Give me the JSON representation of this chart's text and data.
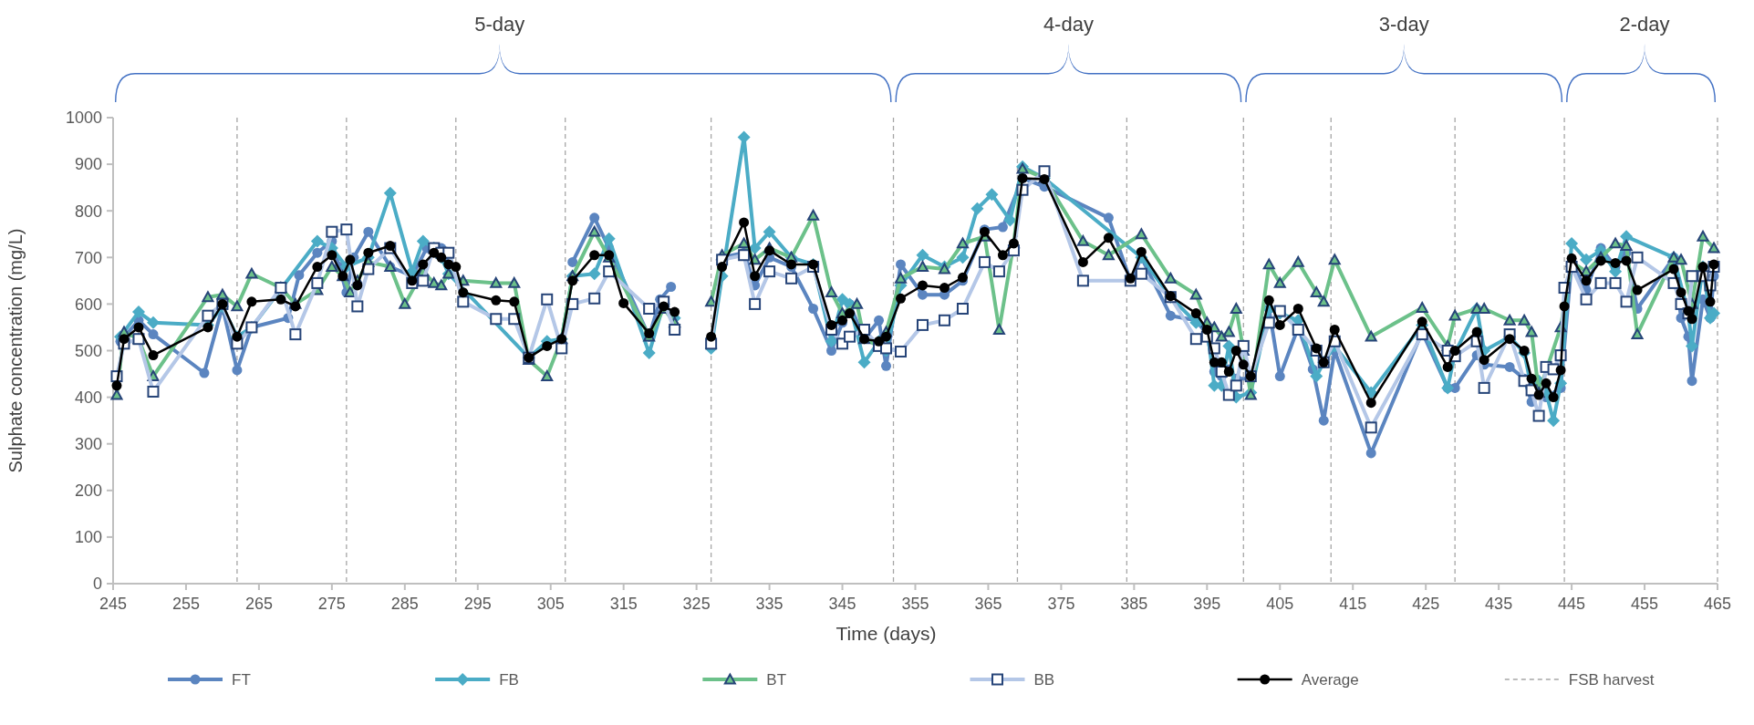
{
  "chart_data": {
    "type": "line",
    "xlabel": "Time (days)",
    "ylabel": "Sulphate concentration  (mg/L)",
    "xlim": [
      245,
      465
    ],
    "xticks": [
      245,
      255,
      265,
      275,
      285,
      295,
      305,
      315,
      325,
      335,
      345,
      355,
      365,
      375,
      385,
      395,
      405,
      415,
      425,
      435,
      445,
      455,
      465
    ],
    "ylim": [
      0,
      1000
    ],
    "yticks": [
      0,
      100,
      200,
      300,
      400,
      500,
      600,
      700,
      800,
      900,
      1000
    ],
    "legend": "bottom",
    "line_style": "solid",
    "annotations": [
      "5-day",
      "4-day",
      "3-day",
      "2-day"
    ],
    "ref_lines": [
      {
        "axis": "x",
        "value": 262,
        "label": "FSB harvest",
        "color": "#a6a6a6",
        "line_style": "dashed"
      },
      {
        "axis": "x",
        "value": 277,
        "color": "#a6a6a6",
        "line_style": "dashed"
      },
      {
        "axis": "x",
        "value": 292,
        "color": "#a6a6a6",
        "line_style": "dashed"
      },
      {
        "axis": "x",
        "value": 307,
        "color": "#a6a6a6",
        "line_style": "dashed"
      },
      {
        "axis": "x",
        "value": 327,
        "color": "#a6a6a6",
        "line_style": "dashed"
      },
      {
        "axis": "x",
        "value": 352,
        "color": "#a6a6a6",
        "line_style": "dashed"
      },
      {
        "axis": "x",
        "value": 369,
        "color": "#a6a6a6",
        "line_style": "dashed"
      },
      {
        "axis": "x",
        "value": 384,
        "color": "#a6a6a6",
        "line_style": "dashed"
      },
      {
        "axis": "x",
        "value": 400,
        "color": "#a6a6a6",
        "line_style": "dashed"
      },
      {
        "axis": "x",
        "value": 412,
        "color": "#a6a6a6",
        "line_style": "dashed"
      },
      {
        "axis": "x",
        "value": 429,
        "color": "#a6a6a6",
        "line_style": "dashed"
      },
      {
        "axis": "x",
        "value": 444,
        "color": "#a6a6a6",
        "line_style": "dashed"
      },
      {
        "axis": "x",
        "value": 465,
        "color": "#a6a6a6",
        "line_style": "dashed"
      }
    ],
    "series": [
      {
        "name": "FT",
        "color": "#5b85c0",
        "marker": "circle",
        "x": [
          246,
          248.5,
          250.5,
          257.5,
          260,
          262,
          264,
          269,
          270.5,
          273,
          275,
          276,
          277,
          278,
          280,
          283,
          286,
          288,
          290,
          291,
          299,
          308,
          311,
          313,
          318.5,
          320,
          321.5,
          324.5,
          328.5,
          331.5,
          333,
          335,
          338,
          341,
          343.5,
          345,
          346,
          348,
          350,
          351,
          353,
          356,
          359,
          361.5,
          364.5,
          367,
          369.7,
          372.7,
          381.5,
          384.5,
          386,
          390,
          393.5,
          395,
          396,
          397,
          398,
          399,
          401,
          403.5,
          405,
          407.5,
          409.5,
          411,
          412.5,
          417.5,
          424.5,
          428,
          429,
          432,
          433,
          436.5,
          438.5,
          439.5,
          440.5,
          441.5,
          443.5,
          445,
          447,
          449,
          451,
          452.5,
          454,
          459,
          460,
          461,
          461.5,
          463,
          464,
          464.5
        ],
        "values": [
          520,
          565,
          535,
          452,
          595,
          458,
          550,
          570,
          662,
          710,
          735,
          680,
          625,
          700,
          755,
          680,
          660,
          720,
          720,
          690,
          null,
          690,
          785,
          720,
          530,
          610,
          637,
          null,
          700,
          710,
          640,
          700,
          680,
          590,
          500,
          560,
          600,
          525,
          565,
          467,
          685,
          620,
          620,
          650,
          760,
          765,
          870,
          852,
          785,
          650,
          700,
          575,
          565,
          535,
          455,
          445,
          460,
          440,
          440,
          590,
          445,
          550,
          460,
          350,
          500,
          280,
          540,
          420,
          420,
          490,
          470,
          465,
          440,
          390,
          410,
          400,
          420,
          690,
          630,
          720,
          680,
          710,
          590,
          700,
          570,
          530,
          435,
          610,
          570,
          660
        ]
      },
      {
        "name": "FB",
        "color": "#4bacc6",
        "marker": "diamond",
        "x": [
          246,
          248.5,
          250.5,
          258,
          260,
          262,
          264,
          273,
          275,
          277,
          280,
          283,
          286,
          287.5,
          289,
          290,
          291,
          302,
          304.5,
          306.5,
          308,
          311,
          313,
          318.5,
          320.5,
          322,
          324.5,
          327,
          328.5,
          331.5,
          333,
          335,
          338,
          341,
          343.5,
          345,
          346,
          348,
          350,
          351,
          353,
          356,
          359,
          361.5,
          363.5,
          365.5,
          368,
          369.7,
          372.7,
          386,
          390,
          393.5,
          395,
          396,
          397,
          398,
          399,
          401,
          403.5,
          405,
          407.5,
          410,
          411,
          412.5,
          417.5,
          424.5,
          428,
          429,
          432,
          433,
          436.5,
          438.5,
          439.5,
          440.5,
          441.5,
          442.5,
          443.5,
          445,
          447,
          449,
          451,
          452.5,
          459,
          461,
          461.5,
          463,
          464,
          464.5
        ],
        "values": [
          530,
          583,
          560,
          555,
          595,
          530,
          550,
          735,
          720,
          680,
          700,
          838,
          670,
          735,
          720,
          700,
          665,
          485,
          520,
          525,
          660,
          665,
          740,
          495,
          600,
          570,
          null,
          505,
          660,
          958,
          720,
          755,
          700,
          685,
          520,
          610,
          600,
          475,
          520,
          500,
          640,
          705,
          680,
          700,
          805,
          835,
          780,
          895,
          870,
          700,
          615,
          560,
          550,
          425,
          425,
          510,
          400,
          410,
          590,
          580,
          565,
          445,
          475,
          510,
          410,
          555,
          420,
          495,
          590,
          500,
          530,
          495,
          420,
          435,
          410,
          350,
          430,
          730,
          695,
          715,
          670,
          745,
          700,
          580,
          510,
          680,
          570,
          580
        ]
      },
      {
        "name": "BT",
        "color": "#6cc18a",
        "marker": "triangle",
        "x": [
          245.5,
          246.5,
          248.5,
          250.5,
          258,
          260,
          262,
          264,
          268,
          270,
          273,
          275,
          276.5,
          277.5,
          278.5,
          280,
          283,
          285,
          287.5,
          289,
          290,
          291,
          293,
          297.5,
          300,
          302,
          304.5,
          306.5,
          308,
          311,
          313,
          318.5,
          320.5,
          322,
          324.5,
          327,
          328.5,
          331.5,
          333,
          335,
          338,
          341,
          343.5,
          345,
          347,
          348,
          350,
          351,
          353,
          356,
          359,
          361.5,
          364.5,
          366.5,
          368.5,
          369.7,
          372.7,
          378,
          381.5,
          386,
          390,
          393.5,
          395,
          396,
          397,
          398,
          399,
          400,
          401,
          403.5,
          405,
          407.5,
          410,
          411,
          412.5,
          417.5,
          424.5,
          428,
          429,
          432,
          433,
          436.5,
          438.5,
          439.5,
          440.5,
          443.5,
          445,
          447,
          449,
          451,
          452.5,
          454,
          459,
          460,
          461.5,
          463,
          464.5
        ],
        "values": [
          405,
          540,
          525,
          445,
          615,
          620,
          595,
          665,
          635,
          600,
          630,
          680,
          660,
          625,
          650,
          690,
          680,
          600,
          670,
          645,
          640,
          665,
          650,
          645,
          645,
          480,
          445,
          525,
          660,
          755,
          700,
          530,
          590,
          560,
          null,
          605,
          705,
          730,
          695,
          720,
          700,
          790,
          625,
          580,
          600,
          525,
          510,
          540,
          655,
          680,
          675,
          730,
          745,
          545,
          730,
          890,
          870,
          735,
          705,
          750,
          655,
          620,
          560,
          550,
          530,
          540,
          590,
          500,
          405,
          685,
          645,
          690,
          625,
          605,
          695,
          530,
          592,
          510,
          575,
          590,
          590,
          565,
          565,
          540,
          410,
          550,
          690,
          670,
          700,
          730,
          725,
          535,
          700,
          695,
          600,
          745,
          720
        ]
      },
      {
        "name": "BB",
        "color": "#b4c7e7",
        "marker": "square",
        "x": [
          245.5,
          246.5,
          248.5,
          250.5,
          258,
          260,
          262,
          264,
          268,
          270,
          273,
          275,
          277,
          278.5,
          280,
          283,
          286,
          287.5,
          289,
          290,
          291,
          293,
          297.5,
          300,
          302,
          304.5,
          306.5,
          308,
          311,
          313,
          318.5,
          320.5,
          322,
          324.5,
          327,
          328.5,
          331.5,
          333,
          335,
          338,
          341,
          343.5,
          345,
          346,
          348,
          350,
          351,
          353,
          356,
          359,
          361.5,
          364.5,
          366.5,
          368.5,
          369.7,
          372.7,
          378,
          384.5,
          386,
          390,
          393.5,
          395,
          396,
          397,
          398,
          399,
          400,
          401,
          403.5,
          405,
          407.5,
          410,
          411,
          412.5,
          417.5,
          424.5,
          428,
          429,
          432,
          433,
          436.5,
          438.5,
          439.5,
          440.5,
          441.5,
          442.5,
          443.5,
          444,
          445,
          447,
          449,
          451,
          452.5,
          454,
          459,
          460,
          461,
          461.5,
          463,
          464,
          464.5
        ],
        "values": [
          445,
          515,
          525,
          412,
          575,
          600,
          515,
          550,
          635,
          535,
          645,
          755,
          760,
          595,
          675,
          720,
          645,
          650,
          720,
          710,
          710,
          605,
          568,
          568,
          485,
          610,
          505,
          600,
          612,
          670,
          590,
          605,
          545,
          null,
          515,
          695,
          705,
          600,
          670,
          655,
          680,
          545,
          515,
          530,
          545,
          510,
          505,
          498,
          555,
          565,
          590,
          690,
          670,
          715,
          845,
          885,
          650,
          650,
          665,
          615,
          525,
          530,
          505,
          455,
          405,
          425,
          510,
          445,
          560,
          585,
          545,
          500,
          475,
          520,
          335,
          535,
          500,
          488,
          520,
          420,
          535,
          435,
          415,
          360,
          465,
          460,
          490,
          635,
          680,
          610,
          645,
          645,
          605,
          700,
          645,
          600,
          580,
          660,
          660,
          640,
          680
        ]
      },
      {
        "name": "Average",
        "color": "#000000",
        "marker": "circle",
        "x": [
          245.5,
          246.5,
          248.5,
          250.5,
          258,
          260,
          262,
          264,
          268,
          270,
          273,
          275,
          276.5,
          277.5,
          278.5,
          280,
          283,
          286,
          287.5,
          289,
          290,
          291,
          292,
          293,
          297.5,
          300,
          302,
          304.5,
          306.5,
          308,
          311,
          313,
          315,
          318.5,
          320.5,
          322,
          324.5,
          327,
          328.5,
          331.5,
          333,
          335,
          338,
          341,
          343.5,
          345,
          346,
          348,
          350,
          351,
          353,
          356,
          359,
          361.5,
          364.5,
          367,
          368.5,
          369.7,
          372.7,
          378,
          381.5,
          384.5,
          386,
          390,
          393.5,
          395,
          396,
          397,
          398,
          399,
          400,
          401,
          403.5,
          405,
          407.5,
          410,
          411,
          412.5,
          417.5,
          424.5,
          428,
          429,
          432,
          433,
          436.5,
          438.5,
          439.5,
          440.5,
          441.5,
          442.5,
          443.5,
          444,
          445,
          447,
          449,
          451,
          452.5,
          454,
          459,
          460,
          461,
          461.5,
          463,
          464,
          464.5
        ],
        "values": [
          425,
          525,
          550,
          490,
          550,
          600,
          530,
          605,
          610,
          595,
          680,
          705,
          660,
          695,
          640,
          710,
          725,
          650,
          685,
          710,
          700,
          685,
          680,
          625,
          608,
          605,
          485,
          510,
          525,
          650,
          705,
          705,
          602,
          537,
          595,
          583,
          null,
          530,
          680,
          775,
          660,
          715,
          685,
          685,
          555,
          565,
          580,
          525,
          520,
          530,
          612,
          640,
          635,
          657,
          755,
          705,
          730,
          870,
          868,
          690,
          742,
          655,
          712,
          617,
          580,
          545,
          475,
          475,
          455,
          500,
          470,
          445,
          608,
          555,
          590,
          505,
          475,
          545,
          388,
          562,
          465,
          500,
          540,
          480,
          525,
          500,
          440,
          405,
          430,
          400,
          458,
          595,
          698,
          650,
          693,
          688,
          693,
          630,
          675,
          625,
          585,
          568,
          680,
          605,
          685
        ]
      }
    ]
  }
}
